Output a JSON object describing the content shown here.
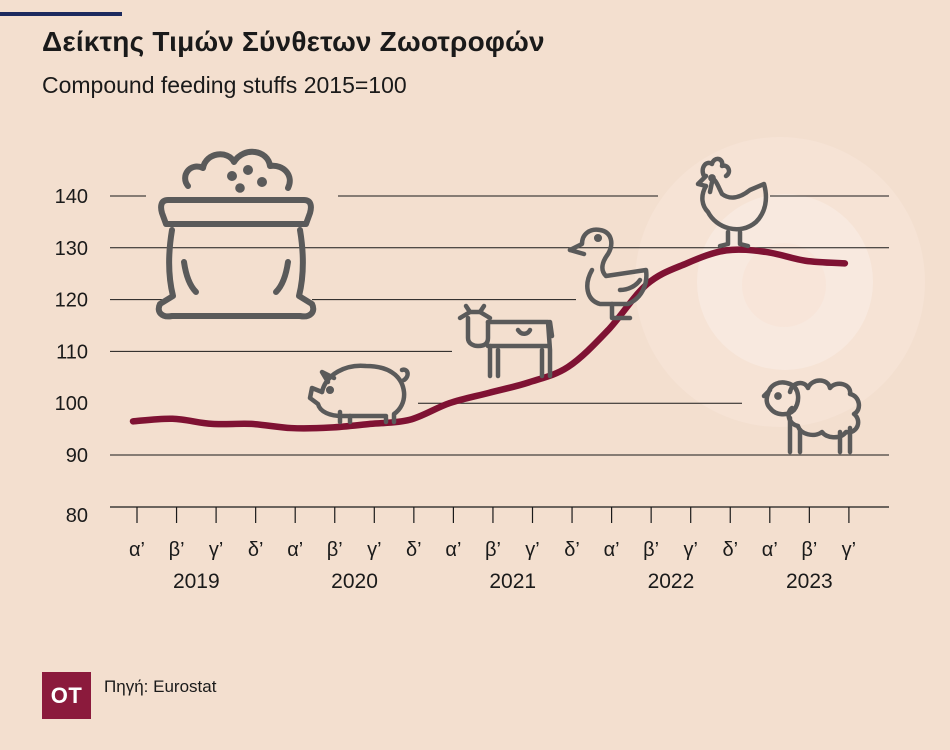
{
  "header": {
    "title": "Δείκτης Τιμών Σύνθετων Ζωοτροφών",
    "subtitle": "Compound feeding stuffs 2015=100"
  },
  "footer": {
    "logo_text": "OT",
    "source": "Πηγή: Eurostat"
  },
  "colors": {
    "line": "#7f1233",
    "background": "#f3dfcf",
    "grid": "#1a1a1a",
    "icon": "#5a5a5a",
    "accent_bar": "#1c2a5e"
  },
  "icons": [
    "feed-sack-icon",
    "pig-icon",
    "cow-icon",
    "duck-icon",
    "rooster-icon",
    "sheep-icon"
  ],
  "chart_data": {
    "type": "line",
    "categories": [
      "α’",
      "β’",
      "γ’",
      "δ’",
      "α’",
      "β’",
      "γ’",
      "δ’",
      "α’",
      "β’",
      "γ’",
      "δ’",
      "α’",
      "β’",
      "γ’",
      "δ’",
      "α’",
      "β’",
      "γ’"
    ],
    "years": [
      {
        "label": "2019",
        "start": 0,
        "end": 3
      },
      {
        "label": "2020",
        "start": 4,
        "end": 7
      },
      {
        "label": "2021",
        "start": 8,
        "end": 11
      },
      {
        "label": "2022",
        "start": 12,
        "end": 15
      },
      {
        "label": "2023",
        "start": 16,
        "end": 18
      }
    ],
    "series": [
      {
        "values": [
          96.5,
          97,
          96,
          96,
          95.2,
          95.3,
          96,
          96.8,
          100,
          102,
          104,
          107,
          114,
          123,
          127,
          129.5,
          129.2,
          127.5,
          127
        ]
      }
    ],
    "ylim": [
      80,
      140
    ],
    "yticks": [
      80,
      90,
      100,
      110,
      120,
      130,
      140
    ],
    "grid": true,
    "title": "",
    "xlabel": "",
    "ylabel": ""
  }
}
